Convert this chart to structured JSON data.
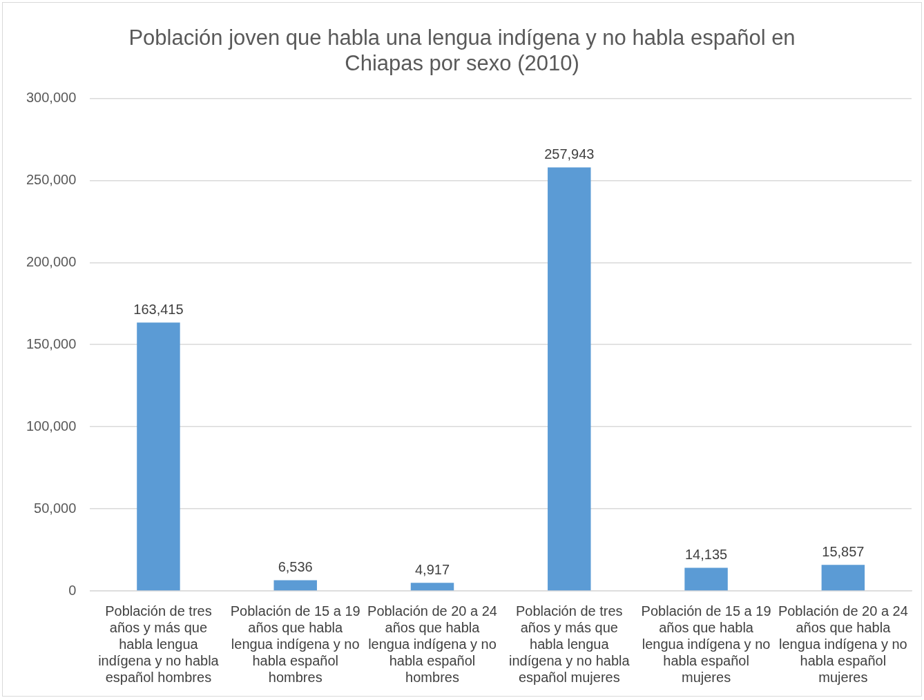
{
  "chart_data": {
    "type": "bar",
    "title": "Población joven que habla una lengua indígena y no habla español en Chiapas por sexo (2010)",
    "categories": [
      "Población de tres años y más que habla lengua indígena y no habla español hombres",
      "Población de 15 a 19 años que habla lengua indígena y no habla español hombres",
      "Población de 20 a 24 años que habla lengua indígena y no habla español hombres",
      "Población de tres años y más que habla lengua indígena y no habla español mujeres",
      "Población de 15 a 19 años que habla lengua indígena y no habla español mujeres",
      "Población de 20 a 24 años que habla lengua indígena y no habla español mujeres"
    ],
    "values": [
      163415,
      6536,
      4917,
      257943,
      14135,
      15857
    ],
    "value_labels": [
      "163,415",
      "6,536",
      "4,917",
      "257,943",
      "14,135",
      "15,857"
    ],
    "color": "#5b9bd5",
    "ylim": [
      0,
      300000
    ],
    "yticks": [
      0,
      {
        "value": 50000,
        "label": "50,000"
      },
      {
        "value": 100000,
        "label": "100,000"
      },
      {
        "value": 150000,
        "label": "150,000"
      },
      {
        "value": 200000,
        "label": "200,000"
      },
      {
        "value": 250000,
        "label": "250,000"
      },
      {
        "value": 300000,
        "label": "300,000"
      }
    ],
    "grid": "y"
  }
}
